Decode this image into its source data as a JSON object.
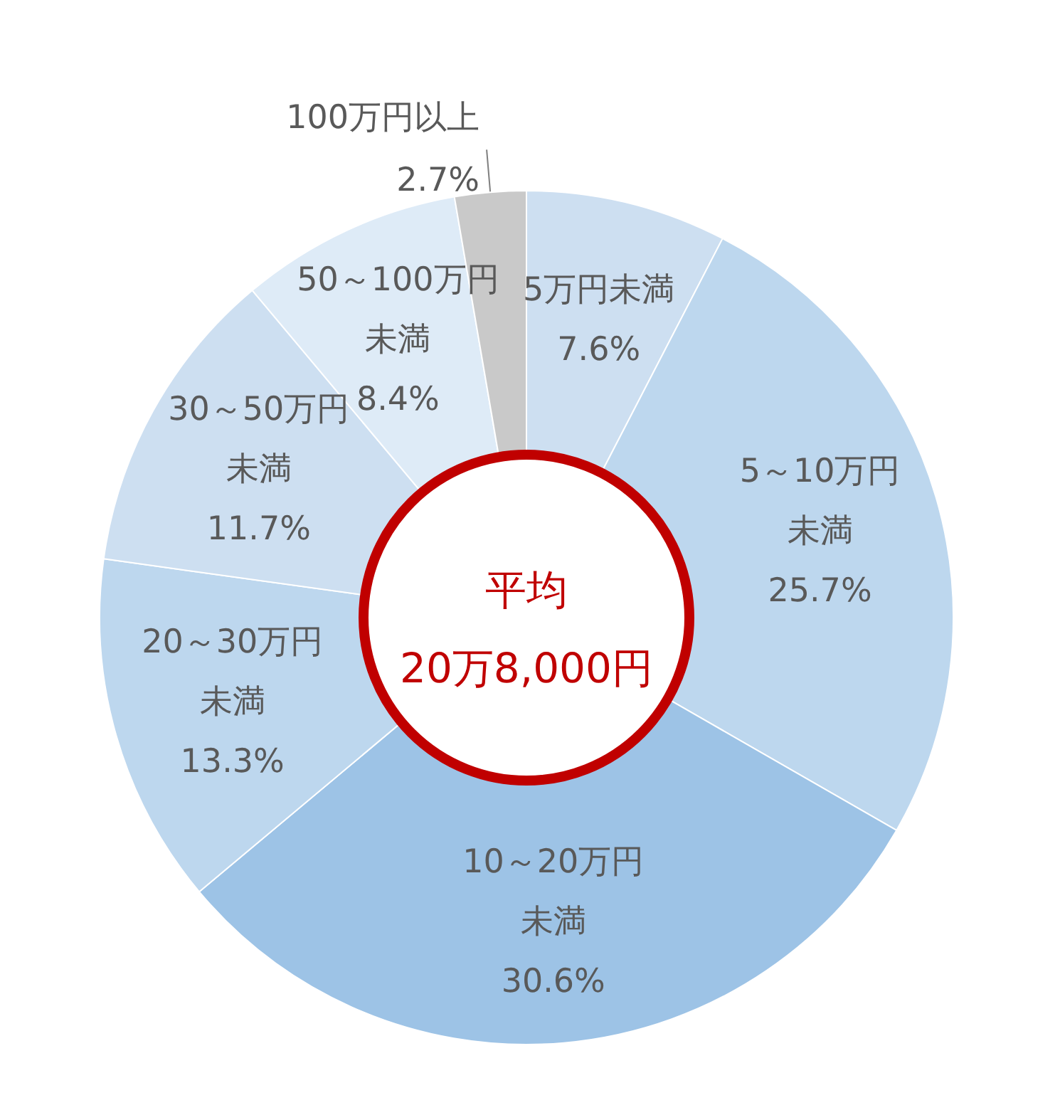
{
  "chart_data": {
    "type": "donut",
    "categories": [
      "5万円未満",
      "5～10万円未満",
      "10～20万円未満",
      "20～30万円未満",
      "30～50万円未満",
      "50～100万円未満",
      "100万円以上"
    ],
    "values": [
      7.6,
      25.7,
      30.6,
      13.3,
      11.7,
      8.4,
      2.7
    ],
    "value_labels": [
      "7.6%",
      "25.7%",
      "30.6%",
      "13.3%",
      "11.7%",
      "8.4%",
      "2.7%"
    ],
    "colors": [
      "#cddff1",
      "#bdd7ee",
      "#9dc3e6",
      "#bdd7ee",
      "#cddff1",
      "#deebf7",
      "#c9c9c9"
    ],
    "annotations": [
      "平均",
      "20万8,000円"
    ]
  }
}
